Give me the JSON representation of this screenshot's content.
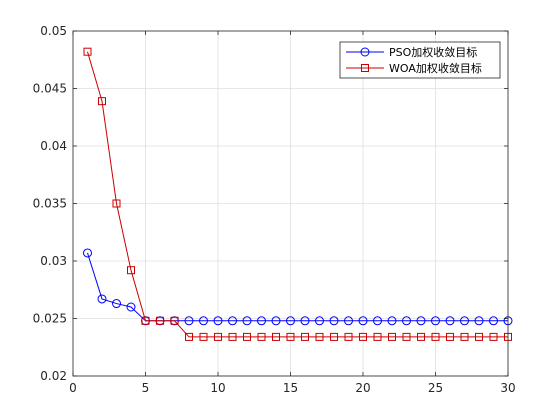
{
  "chart_data": {
    "type": "line",
    "title": "",
    "xlabel": "",
    "ylabel": "",
    "xlim": [
      0,
      30
    ],
    "ylim": [
      0.02,
      0.05
    ],
    "xticks": [
      "0",
      "5",
      "10",
      "15",
      "20",
      "25",
      "30"
    ],
    "yticks": [
      "0.02",
      "0.025",
      "0.03",
      "0.035",
      "0.04",
      "0.045",
      "0.05"
    ],
    "grid": true,
    "legend_position": "top-right",
    "series": [
      {
        "name": "PSO加权收敛目标",
        "color": "#0000ff",
        "marker": "circle",
        "x": [
          1,
          2,
          3,
          4,
          5,
          6,
          7,
          8,
          9,
          10,
          11,
          12,
          13,
          14,
          15,
          16,
          17,
          18,
          19,
          20,
          21,
          22,
          23,
          24,
          25,
          26,
          27,
          28,
          29,
          30
        ],
        "y": [
          0.0307,
          0.0267,
          0.0263,
          0.026,
          0.0248,
          0.0248,
          0.0248,
          0.0248,
          0.0248,
          0.0248,
          0.0248,
          0.0248,
          0.0248,
          0.0248,
          0.0248,
          0.0248,
          0.0248,
          0.0248,
          0.0248,
          0.0248,
          0.0248,
          0.0248,
          0.0248,
          0.0248,
          0.0248,
          0.0248,
          0.0248,
          0.0248,
          0.0248,
          0.0248
        ]
      },
      {
        "name": "WOA加权收敛目标",
        "color": "#cc0000",
        "marker": "square",
        "x": [
          1,
          2,
          3,
          4,
          5,
          6,
          7,
          8,
          9,
          10,
          11,
          12,
          13,
          14,
          15,
          16,
          17,
          18,
          19,
          20,
          21,
          22,
          23,
          24,
          25,
          26,
          27,
          28,
          29,
          30
        ],
        "y": [
          0.0482,
          0.0439,
          0.035,
          0.0292,
          0.0248,
          0.0248,
          0.0248,
          0.0234,
          0.0234,
          0.0234,
          0.0234,
          0.0234,
          0.0234,
          0.0234,
          0.0234,
          0.0234,
          0.0234,
          0.0234,
          0.0234,
          0.0234,
          0.0234,
          0.0234,
          0.0234,
          0.0234,
          0.0234,
          0.0234,
          0.0234,
          0.0234,
          0.0234,
          0.0234
        ]
      }
    ]
  }
}
